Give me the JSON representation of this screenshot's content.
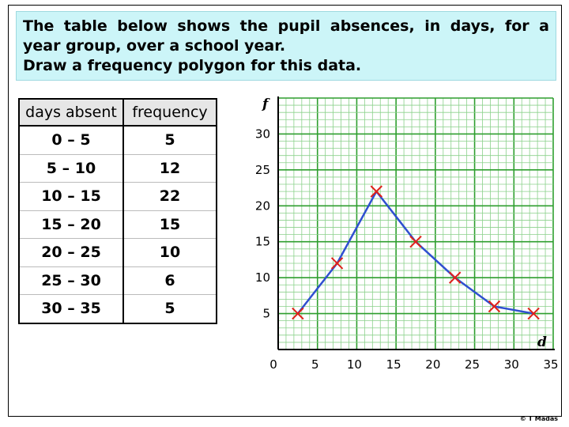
{
  "question": {
    "line1": "The table below shows the pupil absences, in days, for a",
    "line2": "year group, over a school year.",
    "line3": "Draw a frequency polygon for this data."
  },
  "table": {
    "headers": [
      "days absent",
      "frequency"
    ],
    "rows": [
      [
        "0 – 5",
        "5"
      ],
      [
        "5 – 10",
        "12"
      ],
      [
        "10 – 15",
        "22"
      ],
      [
        "15 – 20",
        "15"
      ],
      [
        "20 – 25",
        "10"
      ],
      [
        "25 – 30",
        "6"
      ],
      [
        "30 – 35",
        "5"
      ]
    ]
  },
  "chart_data": {
    "type": "line",
    "xlabel": "d",
    "ylabel": "f",
    "xlim": [
      0,
      35
    ],
    "ylim": [
      0,
      35
    ],
    "x_ticks": [
      "0",
      "5",
      "10",
      "15",
      "20",
      "25",
      "30",
      "35"
    ],
    "y_ticks": [
      "5",
      "10",
      "15",
      "20",
      "25",
      "30"
    ],
    "x": [
      2.5,
      7.5,
      12.5,
      17.5,
      22.5,
      27.5,
      32.5
    ],
    "y": [
      5,
      12,
      22,
      15,
      10,
      6,
      5
    ],
    "grid": true,
    "colors": {
      "grid_fine": "#8bd18b",
      "grid_major": "#2e9e2e",
      "line": "#2f4fd0",
      "marker": "#e0201a"
    }
  },
  "credit": "© T Madas"
}
